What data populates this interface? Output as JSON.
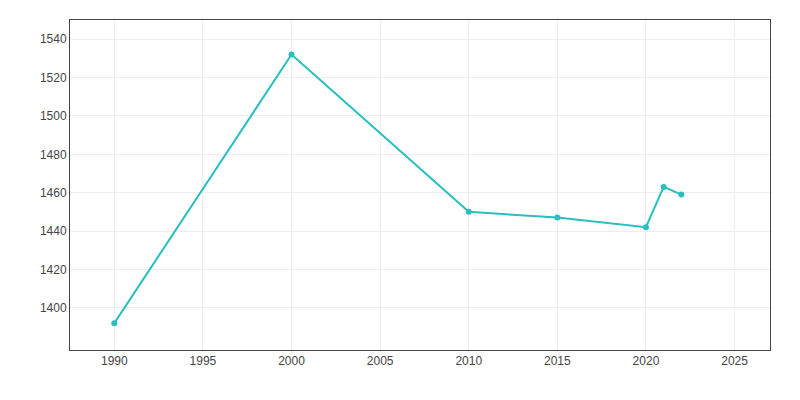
{
  "chart_data": {
    "type": "line",
    "x": [
      1990,
      2000,
      2010,
      2015,
      2020,
      2021,
      2022
    ],
    "values": [
      1392,
      1532,
      1450,
      1447,
      1442,
      1463,
      1459
    ],
    "color": "#2ABFBF",
    "marker": "circle",
    "xlim": [
      1987.5,
      2027
    ],
    "ylim": [
      1378,
      1550
    ],
    "xticks": [
      1990,
      1995,
      2000,
      2005,
      2010,
      2015,
      2020,
      2025
    ],
    "yticks": [
      1400,
      1420,
      1440,
      1460,
      1480,
      1500,
      1520,
      1540
    ],
    "grid": true
  }
}
